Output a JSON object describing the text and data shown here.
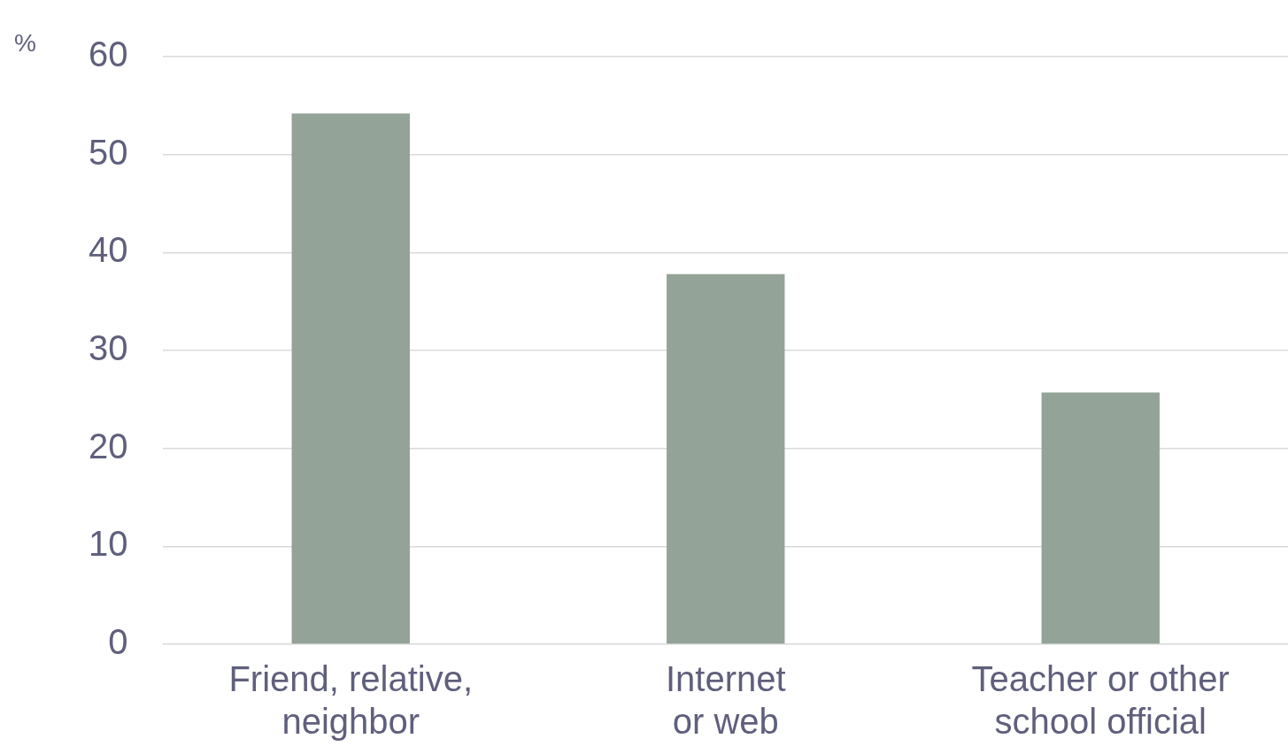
{
  "chart_data": {
    "type": "bar",
    "ylabel": "%",
    "categories": [
      "Friend, relative, neighbor",
      "Internet or web",
      "Teacher or other school official"
    ],
    "values": [
      54.2,
      37.8,
      25.7
    ],
    "color": "#94a397",
    "ylim": [
      0,
      60
    ],
    "yticks": [
      0,
      10,
      20,
      30,
      40,
      50,
      60
    ],
    "grid": "y",
    "legend": false
  }
}
